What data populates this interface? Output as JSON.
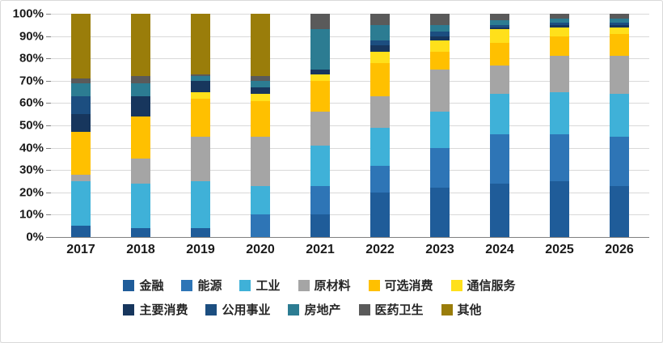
{
  "chart_data": {
    "type": "bar",
    "stacked": true,
    "unit": "percent",
    "title": "",
    "xlabel": "",
    "ylabel": "",
    "ylim": [
      0,
      100
    ],
    "grid": true,
    "legend_position": "bottom",
    "legend_row_split": 6,
    "y_ticks": [
      "100%",
      "90%",
      "80%",
      "70%",
      "60%",
      "50%",
      "40%",
      "30%",
      "20%",
      "10%",
      "0%"
    ],
    "categories": [
      "2017",
      "2018",
      "2019",
      "2020",
      "2021",
      "2022",
      "2023",
      "2024",
      "2025",
      "2026"
    ],
    "series": [
      {
        "name": "金融",
        "color": "#1F5C99",
        "values": [
          5,
          4,
          4,
          0,
          10,
          20,
          22,
          24,
          25,
          23
        ]
      },
      {
        "name": "能源",
        "color": "#2E75B6",
        "values": [
          0,
          0,
          0,
          10,
          13,
          12,
          18,
          22,
          21,
          22
        ]
      },
      {
        "name": "工业",
        "color": "#3FB1D8",
        "values": [
          20,
          20,
          21,
          13,
          18,
          17,
          16,
          18,
          19,
          19
        ]
      },
      {
        "name": "原材料",
        "color": "#A5A5A5",
        "values": [
          3,
          11,
          20,
          22,
          15,
          14,
          19,
          13,
          16,
          17
        ]
      },
      {
        "name": "可选消费",
        "color": "#FFC000",
        "values": [
          19,
          19,
          17,
          16,
          14,
          15,
          8,
          10,
          9,
          10
        ]
      },
      {
        "name": "通信服务",
        "color": "#FFE01B",
        "values": [
          0,
          0,
          3,
          3,
          3,
          5,
          5,
          6,
          4,
          3
        ]
      },
      {
        "name": "主要消费",
        "color": "#17365D",
        "values": [
          8,
          9,
          5,
          3,
          2,
          3,
          2,
          1,
          1,
          1
        ]
      },
      {
        "name": "公用事业",
        "color": "#1C4E80",
        "values": [
          8,
          0,
          0,
          0,
          0,
          2,
          2,
          1,
          1,
          1
        ]
      },
      {
        "name": "房地产",
        "color": "#2C7C92",
        "values": [
          6,
          6,
          2,
          3,
          18,
          7,
          3,
          2,
          2,
          2
        ]
      },
      {
        "name": "医药卫生",
        "color": "#5A5A5A",
        "values": [
          2,
          3,
          1,
          2,
          7,
          5,
          5,
          3,
          2,
          2
        ]
      },
      {
        "name": "其他",
        "color": "#9A7D0A",
        "values": [
          29,
          28,
          27,
          28,
          0,
          0,
          0,
          0,
          0,
          0
        ]
      }
    ]
  }
}
